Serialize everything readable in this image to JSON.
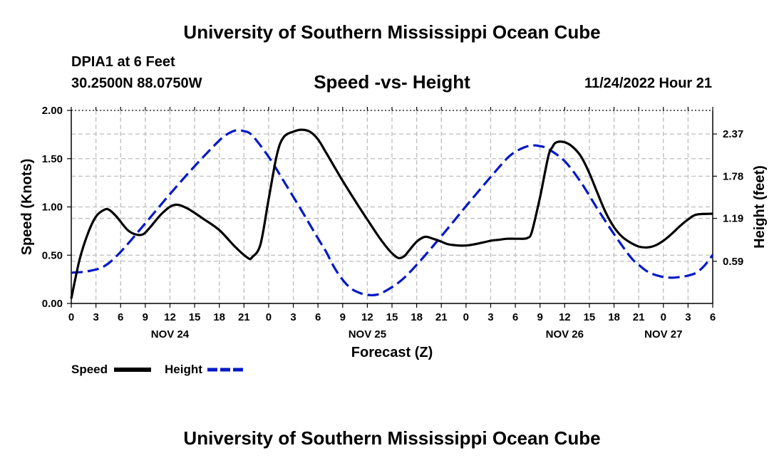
{
  "header": {
    "title": "University of Southern Mississippi Ocean Cube",
    "station": "DPIA1 at 6 Feet",
    "coords": "30.2500N  88.0750W",
    "datetime": "11/24/2022 Hour 21"
  },
  "footer": {
    "title": "University of Southern Mississippi Ocean Cube"
  },
  "chart_data": {
    "type": "line",
    "title": "Speed -vs- Height",
    "xlabel": "Forecast (Z)",
    "ylabel_left": "Speed (Knots)",
    "ylabel_right": "Height (feet)",
    "x_unit": "forecast hour (0 = Nov 24 00Z)",
    "xlim": [
      0,
      78
    ],
    "ylim_left": [
      0,
      2.0
    ],
    "ylim_right": [
      0,
      2.7
    ],
    "x_tick_labels": [
      "0",
      "3",
      "6",
      "9",
      "12",
      "15",
      "18",
      "21",
      "0",
      "3",
      "6",
      "9",
      "12",
      "15",
      "18",
      "21",
      "0",
      "3",
      "6",
      "9",
      "12",
      "15",
      "18",
      "21",
      "0",
      "3",
      "6"
    ],
    "day_labels": [
      {
        "label": "NOV 24",
        "hour": 12
      },
      {
        "label": "NOV 25",
        "hour": 36
      },
      {
        "label": "NOV 26",
        "hour": 60
      },
      {
        "label": "NOV 27",
        "hour": 72
      }
    ],
    "left_ticks": [
      "0.00",
      "0.50",
      "1.00",
      "1.50",
      "2.00"
    ],
    "left_tick_values": [
      0,
      0.5,
      1.0,
      1.5,
      2.0
    ],
    "right_ticks": [
      "0.59",
      "1.19",
      "1.78",
      "2.37"
    ],
    "right_tick_values": [
      0.59,
      1.19,
      1.78,
      2.37
    ],
    "grid": true,
    "series": [
      {
        "name": "Speed",
        "color": "#000000",
        "style": "solid",
        "axis": "left",
        "x": [
          0,
          1,
          2,
          3,
          4,
          4.6,
          5.5,
          7,
          8.5,
          9.5,
          11,
          12.5,
          14,
          16,
          18,
          20,
          21.5,
          22,
          23,
          24,
          25,
          25.8,
          27,
          28,
          29,
          30,
          31,
          33,
          35,
          37,
          38,
          39,
          39.8,
          40.5,
          41,
          42,
          43,
          44,
          45,
          46,
          48,
          50,
          51,
          52,
          53,
          54,
          54.5,
          55,
          55.5,
          56,
          57,
          58,
          58.5,
          59,
          60,
          61,
          62,
          63,
          64,
          65,
          66,
          67,
          68,
          69,
          70,
          71,
          72,
          73,
          74,
          75,
          76,
          78
        ],
        "y": [
          0.05,
          0.45,
          0.72,
          0.9,
          0.97,
          0.97,
          0.9,
          0.75,
          0.71,
          0.78,
          0.93,
          1.02,
          0.99,
          0.88,
          0.76,
          0.58,
          0.47,
          0.48,
          0.61,
          1.08,
          1.54,
          1.72,
          1.78,
          1.8,
          1.78,
          1.7,
          1.56,
          1.27,
          1.0,
          0.74,
          0.62,
          0.52,
          0.47,
          0.49,
          0.54,
          0.64,
          0.69,
          0.67,
          0.64,
          0.61,
          0.6,
          0.63,
          0.65,
          0.66,
          0.67,
          0.67,
          0.67,
          0.67,
          0.68,
          0.74,
          1.1,
          1.52,
          1.62,
          1.67,
          1.67,
          1.62,
          1.52,
          1.35,
          1.14,
          0.94,
          0.79,
          0.69,
          0.63,
          0.59,
          0.58,
          0.6,
          0.65,
          0.72,
          0.8,
          0.87,
          0.92,
          0.93
        ]
      },
      {
        "name": "Height",
        "color": "#0018c8",
        "style": "dashed",
        "axis": "right",
        "x": [
          0,
          2,
          4,
          6,
          9,
          12,
          15,
          18,
          19,
          20,
          21,
          22,
          24,
          26,
          28,
          30,
          31,
          32,
          33,
          34,
          35,
          36,
          37,
          38,
          40,
          42,
          45,
          48,
          51,
          53,
          54,
          55,
          56,
          57,
          58,
          60,
          62,
          64,
          66,
          68,
          69,
          70,
          71,
          72,
          73,
          74,
          75,
          76,
          77,
          78
        ],
        "y": [
          0.43,
          0.45,
          0.52,
          0.72,
          1.12,
          1.53,
          1.92,
          2.28,
          2.37,
          2.42,
          2.41,
          2.35,
          2.05,
          1.68,
          1.3,
          0.91,
          0.72,
          0.5,
          0.33,
          0.21,
          0.15,
          0.12,
          0.12,
          0.16,
          0.31,
          0.54,
          0.94,
          1.36,
          1.77,
          2.03,
          2.12,
          2.18,
          2.21,
          2.2,
          2.16,
          1.99,
          1.69,
          1.32,
          0.97,
          0.65,
          0.54,
          0.45,
          0.4,
          0.37,
          0.36,
          0.37,
          0.39,
          0.43,
          0.53,
          0.68
        ]
      }
    ],
    "legend": [
      {
        "label": "Speed",
        "color": "#000000",
        "style": "solid"
      },
      {
        "label": "Height",
        "color": "#0018c8",
        "style": "dashed"
      }
    ]
  }
}
